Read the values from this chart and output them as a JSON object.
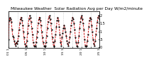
{
  "title": "Milwaukee Weather  Solar Radiation Avg per Day W/m2/minute",
  "title_fontsize": 4.2,
  "bg_color": "#ffffff",
  "line_color": "#cc0000",
  "dot_color": "#000000",
  "ylabel_right_labels": [
    "2",
    "1.5",
    "1",
    ".5",
    "0"
  ],
  "ylabel_right_values": [
    2.0,
    1.5,
    1.0,
    0.5,
    0.0
  ],
  "ylim": [
    -0.05,
    2.3
  ],
  "grid_color": "#999999",
  "x_values": [
    0,
    1,
    2,
    3,
    4,
    5,
    6,
    7,
    8,
    9,
    10,
    11,
    12,
    13,
    14,
    15,
    16,
    17,
    18,
    19,
    20,
    21,
    22,
    23,
    24,
    25,
    26,
    27,
    28,
    29,
    30,
    31,
    32,
    33,
    34,
    35,
    36,
    37,
    38,
    39,
    40,
    41,
    42,
    43,
    44,
    45,
    46,
    47,
    48,
    49,
    50,
    51,
    52,
    53,
    54,
    55,
    56,
    57,
    58,
    59,
    60,
    61,
    62,
    63,
    64,
    65,
    66,
    67,
    68,
    69,
    70,
    71,
    72,
    73,
    74,
    75,
    76,
    77,
    78,
    79,
    80,
    81,
    82,
    83,
    84,
    85,
    86,
    87,
    88,
    89,
    90,
    91,
    92,
    93,
    94,
    95,
    96,
    97,
    98,
    99,
    100,
    101,
    102,
    103,
    104,
    105,
    106,
    107,
    108,
    109,
    110,
    111,
    112,
    113,
    114,
    115,
    116,
    117,
    118,
    119,
    120,
    121,
    122,
    123,
    124,
    125,
    126,
    127,
    128,
    129
  ],
  "y_values": [
    0.5,
    1.7,
    1.9,
    1.8,
    1.6,
    1.1,
    0.7,
    0.6,
    0.4,
    0.2,
    0.1,
    0.3,
    0.2,
    0.4,
    0.7,
    1.1,
    1.5,
    1.8,
    1.9,
    1.7,
    1.4,
    1.0,
    0.6,
    0.2,
    0.05,
    0.1,
    0.4,
    0.9,
    1.4,
    1.8,
    2.0,
    1.9,
    1.6,
    1.2,
    0.8,
    0.3,
    0.1,
    0.05,
    0.1,
    0.3,
    0.6,
    1.0,
    1.5,
    1.8,
    1.9,
    1.7,
    1.4,
    1.0,
    0.6,
    0.3,
    0.1,
    0.05,
    0.1,
    0.3,
    0.7,
    1.2,
    1.6,
    1.9,
    2.0,
    1.8,
    1.5,
    1.1,
    0.6,
    0.3,
    0.05,
    0.1,
    0.4,
    0.8,
    1.3,
    1.7,
    1.9,
    1.7,
    1.3,
    0.8,
    0.3,
    0.1,
    0.6,
    0.9,
    1.2,
    1.4,
    1.2,
    1.0,
    0.7,
    0.4,
    0.2,
    0.1,
    0.3,
    0.6,
    1.0,
    1.4,
    1.7,
    1.9,
    1.8,
    1.5,
    1.1,
    0.6,
    0.3,
    0.1,
    0.05,
    0.3,
    0.7,
    1.2,
    1.6,
    1.9,
    2.0,
    1.8,
    1.5,
    1.1,
    0.5,
    0.1,
    0.05,
    0.1,
    0.4,
    0.8,
    1.3,
    1.7,
    1.9,
    1.8,
    1.4,
    1.0,
    0.5,
    0.2,
    0.1,
    0.4,
    0.8,
    1.2,
    1.6,
    1.9,
    2.0,
    1.8
  ],
  "vgrid_positions": [
    13,
    26,
    39,
    52,
    65,
    78,
    91,
    104,
    117
  ],
  "xtick_positions": [
    0,
    13,
    26,
    39,
    52,
    65,
    78,
    91,
    104,
    117,
    129
  ],
  "xtick_labels": [
    "01 1",
    "",
    "05 1",
    "",
    "10 1",
    "",
    "15 1",
    "",
    "20 1",
    "",
    "25 1"
  ],
  "xtick_fontsize": 3.2,
  "ytick_fontsize": 3.5,
  "linewidth": 0.7,
  "markersize": 1.2
}
